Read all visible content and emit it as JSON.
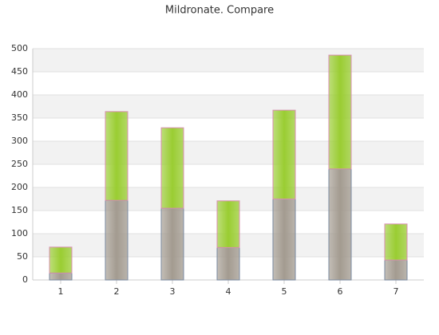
{
  "chart_data": {
    "type": "stacked-bar",
    "title": "Mildronate. Compare",
    "categories": [
      "1",
      "2",
      "3",
      "4",
      "5",
      "6",
      "7"
    ],
    "series": [
      {
        "color": "#a39b90",
        "values": [
          15,
          172,
          155,
          70,
          175,
          240,
          43
        ]
      },
      {
        "color": "#9acd32",
        "values": [
          56,
          192,
          174,
          101,
          192,
          246,
          78
        ]
      }
    ],
    "ylim": [
      0,
      500
    ],
    "yticks": [
      0,
      50,
      100,
      150,
      200,
      250,
      300,
      350,
      400,
      450,
      500
    ],
    "grid": true
  }
}
